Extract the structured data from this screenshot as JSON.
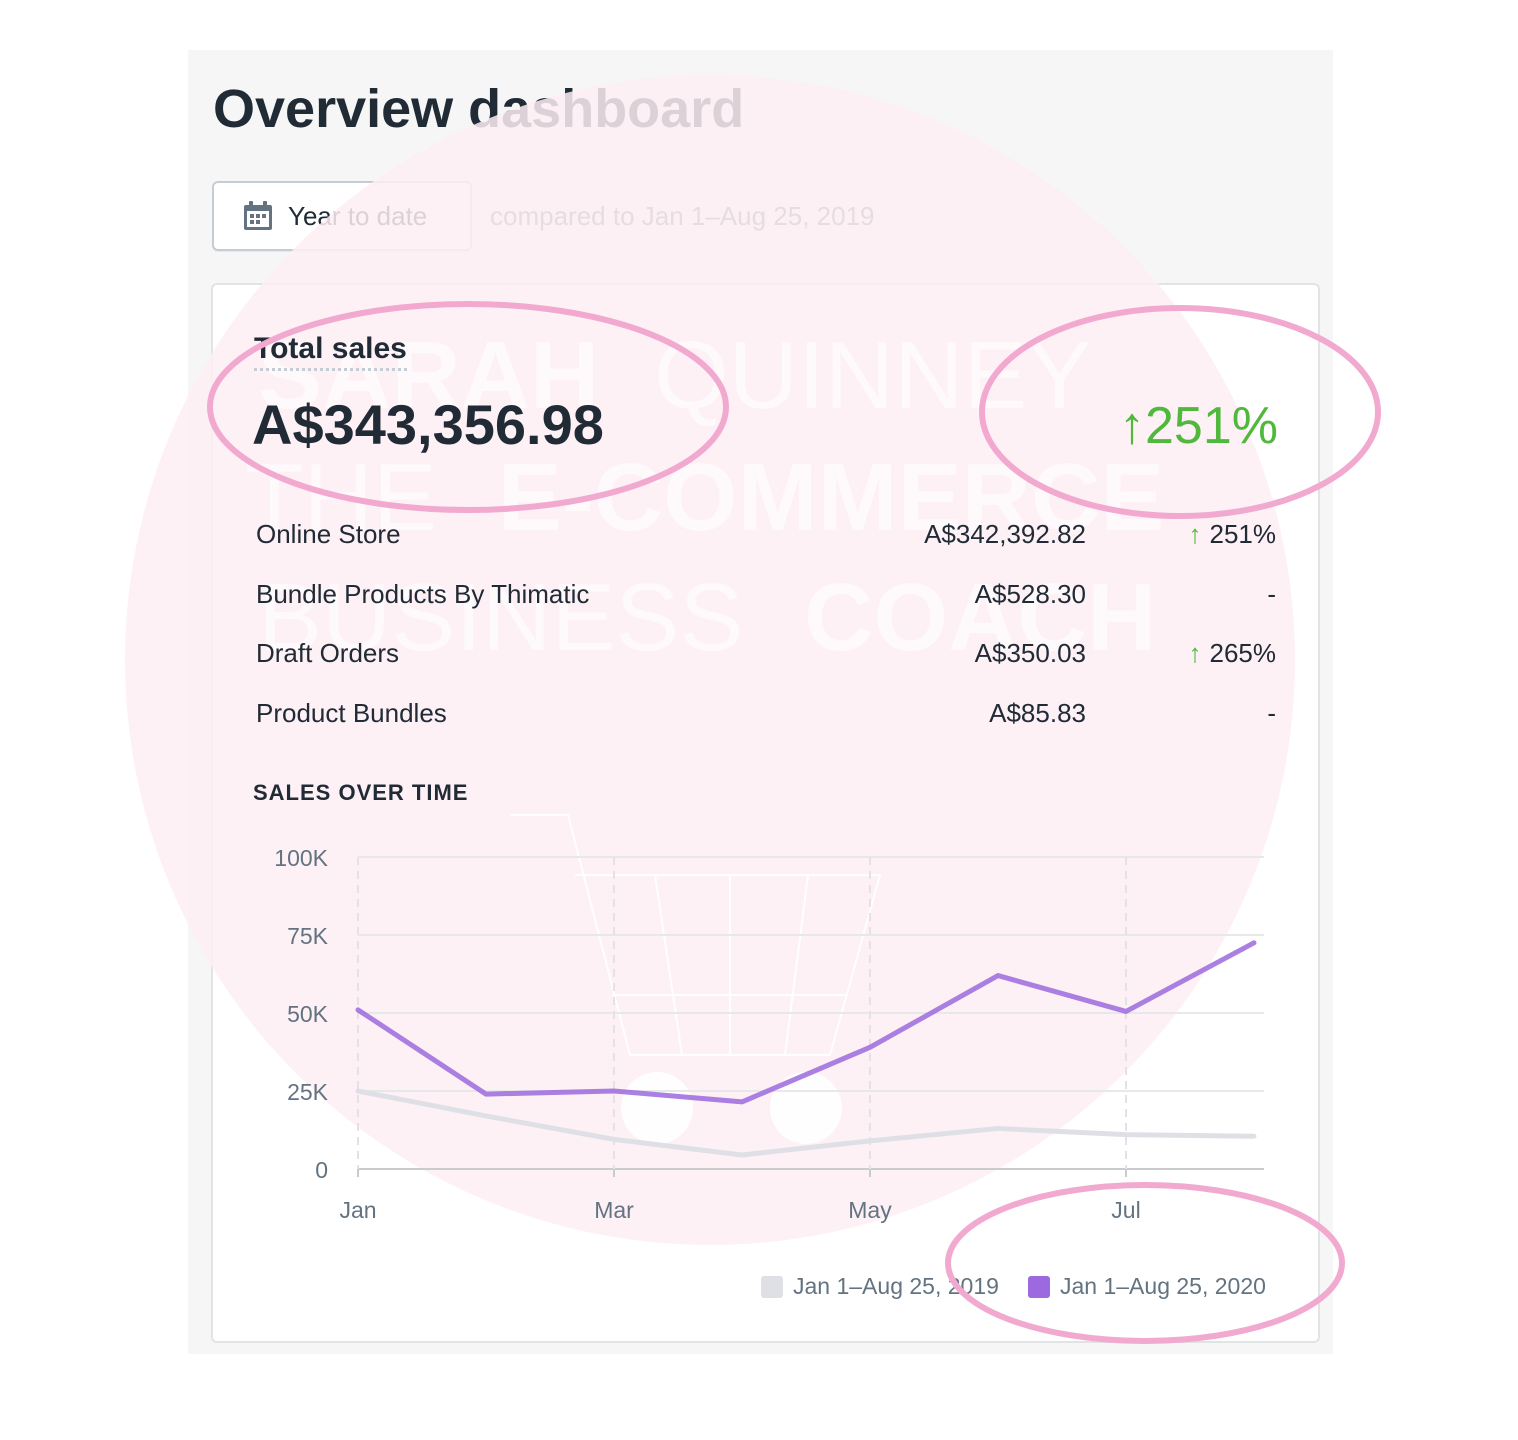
{
  "page": {
    "title": "Overview dashboard",
    "date_range_button": {
      "label": "Year to date",
      "icon": "calendar-icon"
    },
    "compare_text": "compared to Jan 1–Aug 25, 2019"
  },
  "watermark": {
    "line1_thin": "SARAH",
    "line1_bold": "QUINNEY",
    "line2_thin": "THE",
    "line2_bold": "E-COMMERCE",
    "line3_thin": "BUSINESS",
    "line3_bold": "COACH",
    "color": "#fdeef3"
  },
  "total_sales": {
    "label": "Total sales",
    "value": "A$343,356.98",
    "change": "251%",
    "change_color": "#50b83c"
  },
  "channels": [
    {
      "name": "Online Store",
      "value": "A$342,392.82",
      "change": "251%",
      "up": true
    },
    {
      "name": "Bundle Products By Thimatic",
      "value": "A$528.30",
      "change": "-",
      "up": false
    },
    {
      "name": "Draft Orders",
      "value": "A$350.03",
      "change": "265%",
      "up": true
    },
    {
      "name": "Product Bundles",
      "value": "A$85.83",
      "change": "-",
      "up": false
    }
  ],
  "chart_title": "SALES OVER TIME",
  "chart_data": {
    "type": "line",
    "x_ticks": [
      "Jan",
      "Mar",
      "May",
      "Jul"
    ],
    "y_ticks": [
      "0",
      "25K",
      "50K",
      "75K",
      "100K"
    ],
    "ylim": [
      0,
      100000
    ],
    "x": [
      "Jan",
      "Feb",
      "Mar",
      "Apr",
      "May",
      "Jun",
      "Jul",
      "Aug"
    ],
    "series": [
      {
        "name": "Jan 1–Aug 25, 2019",
        "color": "#dfe0e6",
        "values": [
          25000,
          17000,
          9500,
          4500,
          9000,
          13000,
          11000,
          10500
        ]
      },
      {
        "name": "Jan 1–Aug 25, 2020",
        "color": "#9c6ade",
        "values": [
          51000,
          24000,
          25000,
          21500,
          39000,
          62000,
          50500,
          72500
        ]
      }
    ],
    "grid": true,
    "legend": "bottom-right"
  },
  "annotation_color": "#f2a9cf"
}
